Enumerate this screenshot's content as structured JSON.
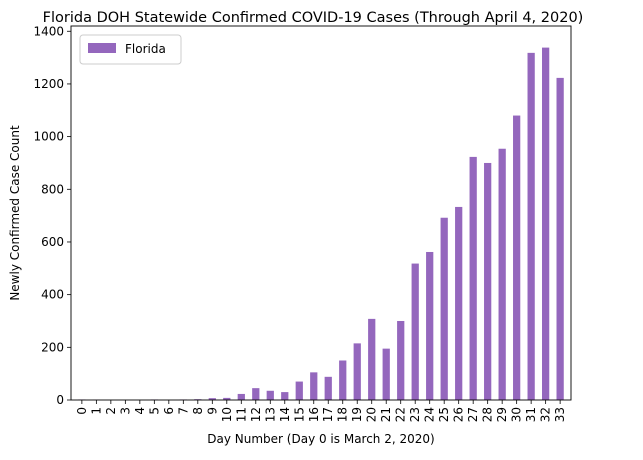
{
  "chart_data": {
    "type": "bar",
    "title": "Florida DOH Statewide Confirmed COVID-19 Cases (Through April 4, 2020)",
    "xlabel": "Day Number (Day 0 is March 2, 2020)",
    "ylabel": "Newly Confirmed Case Count",
    "categories": [
      "0",
      "1",
      "2",
      "3",
      "4",
      "5",
      "6",
      "7",
      "8",
      "9",
      "10",
      "11",
      "12",
      "13",
      "14",
      "15",
      "16",
      "17",
      "18",
      "19",
      "20",
      "21",
      "22",
      "23",
      "24",
      "25",
      "26",
      "27",
      "28",
      "29",
      "30",
      "31",
      "32",
      "33"
    ],
    "series": [
      {
        "name": "Florida",
        "color": "#9467bd",
        "values": [
          2,
          1,
          0,
          0,
          0,
          2,
          0,
          2,
          3,
          7,
          8,
          23,
          45,
          35,
          30,
          70,
          105,
          88,
          150,
          215,
          308,
          195,
          300,
          518,
          562,
          692,
          733,
          923,
          900,
          954,
          1080,
          1318,
          1338,
          1223
        ]
      }
    ],
    "ylim": [
      0,
      1420
    ],
    "yticks": [
      0,
      200,
      400,
      600,
      800,
      1000,
      1200,
      1400
    ],
    "grid": false,
    "legend_position": "top-left"
  }
}
